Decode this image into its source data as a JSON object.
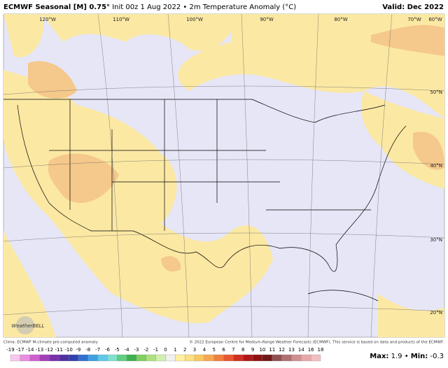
{
  "header": {
    "title_bold": "ECMWF Seasonal [M] 0.75°",
    "title": "Init 00z 1 Aug 2022 • 2m Temperature Anomaly (°C)",
    "valid": "Valid: Dec 2022"
  },
  "map": {
    "lon_labels": [
      "120°W",
      "110°W",
      "100°W",
      "90°W",
      "80°W",
      "70°W",
      "60°W"
    ],
    "lat_labels": [
      "50°N",
      "40°N",
      "30°N",
      "20°N"
    ],
    "logo": "WeatherBELL"
  },
  "footer": {
    "left": "Clima: ECMWF M-climate pre-computed anomaly",
    "right": "© 2022 European Centre for Medium-Range Weather Forecasts (ECMWF). This service is based on data and products of the ECMWF."
  },
  "colorbar": {
    "labels": [
      -19,
      -17,
      -14,
      -13,
      -12,
      -11,
      -10,
      -9,
      -8,
      -7,
      -6,
      -5,
      -4,
      -3,
      -2,
      -1,
      0,
      1,
      2,
      3,
      4,
      5,
      6,
      7,
      8,
      9,
      10,
      11,
      12,
      13,
      14,
      16,
      18
    ]
  },
  "stats": {
    "max_label": "Max:",
    "max": 1.9,
    "min_label": "Min:",
    "min": -0.3
  }
}
